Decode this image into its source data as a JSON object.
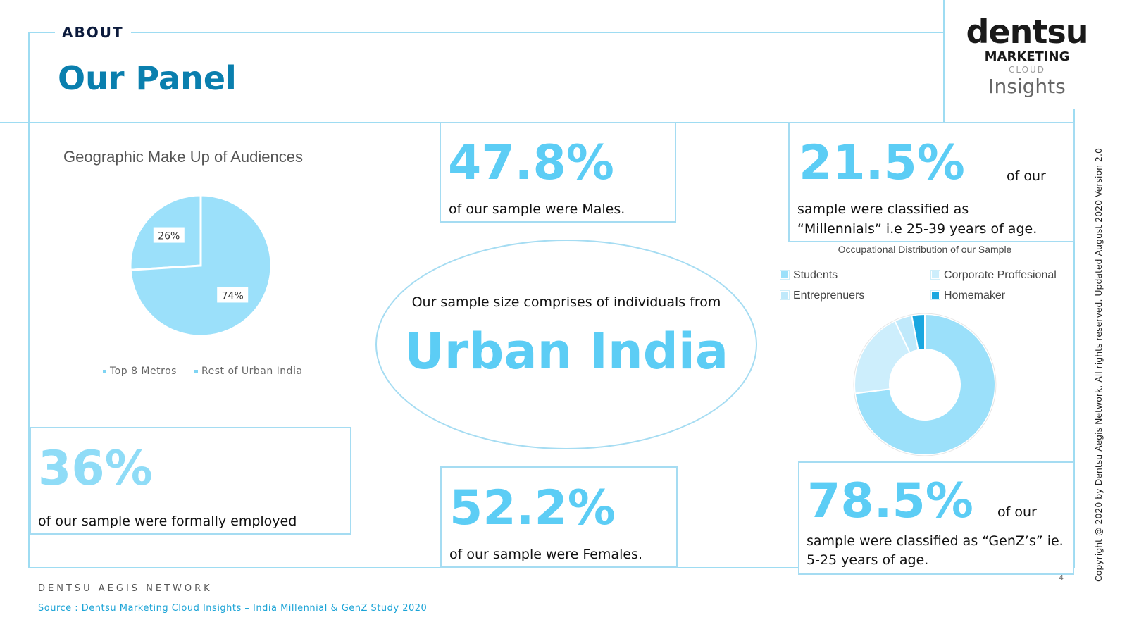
{
  "header": {
    "section_label": "ABOUT",
    "title": "Our Panel"
  },
  "logo": {
    "line1": "dentsu",
    "line2": "MARKETING",
    "line3": "CLOUD",
    "line4": "Insights"
  },
  "geography": {
    "title": "Geographic Make Up of Audiences",
    "legend": [
      "Top 8 Metros",
      "Rest of Urban India"
    ]
  },
  "stats": {
    "males": {
      "value": "47.8%",
      "text": "of our sample were Males."
    },
    "females": {
      "value": "52.2%",
      "text": "of our sample were Females."
    },
    "employed": {
      "value": "36%",
      "text": "of our sample were formally employed"
    },
    "millennials": {
      "value": "21.5%",
      "suffix": "of our",
      "line1": "sample were classified as",
      "line2": "“Millennials” i.e 25-39 years of age."
    },
    "genz": {
      "value": "78.5%",
      "suffix": "of our",
      "line1": "sample were classified as “GenZ’s” ie.",
      "line2": "5-25 years of age."
    }
  },
  "urban": {
    "intro": "Our sample size comprises of individuals from",
    "headline": "Urban India"
  },
  "occupation": {
    "title": "Occupational Distribution of our Sample",
    "legend": [
      "Students",
      "Corporate Proffesional",
      "Entreprenuers",
      "Homemaker"
    ]
  },
  "footer": {
    "network": "DENTSU AEGIS NETWORK",
    "source": "Source : Dentsu Marketing Cloud Insights – India Millennial & GenZ Study 2020",
    "page": "4",
    "copyright": "Copyright @ 2020 by Dentsu Aegis Network. All rights reserved. Updated August 2020 Version 2.0"
  },
  "colors": {
    "accent": "#5ccdf5",
    "title": "#0a7fae",
    "frame": "#a5dcf2",
    "pie_main": "#9be0fa",
    "donut_light": "#cdeefc",
    "donut_mid": "#bfe9fb",
    "donut_dark": "#1aa7e0"
  },
  "chart_data": [
    {
      "type": "pie",
      "title": "Geographic Make Up of Audiences",
      "categories": [
        "Top 8 Metros",
        "Rest of Urban India"
      ],
      "values": [
        26,
        74
      ],
      "labels": [
        "26%",
        "74%"
      ]
    },
    {
      "type": "pie",
      "subtype": "donut",
      "title": "Occupational Distribution of our Sample",
      "categories": [
        "Students",
        "Corporate Proffesional",
        "Entreprenuers",
        "Homemaker"
      ],
      "values": [
        73,
        20,
        4,
        3
      ]
    }
  ]
}
